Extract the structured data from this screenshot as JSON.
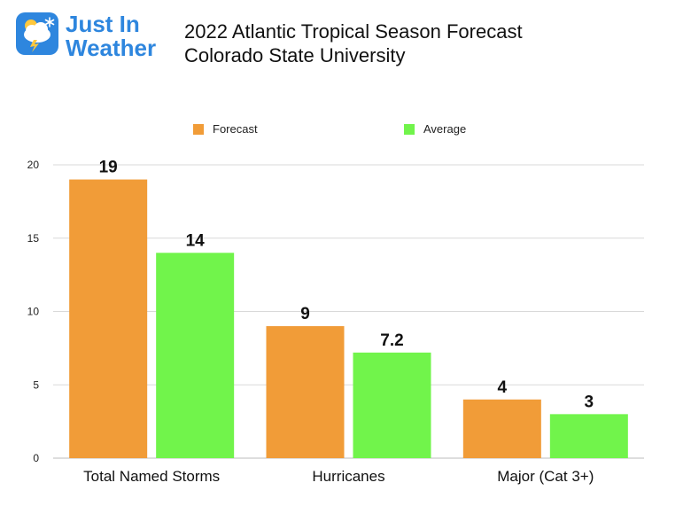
{
  "logo": {
    "line1": "Just In",
    "line2": "Weather"
  },
  "title": "2022 Atlantic Tropical Season Forecast",
  "subtitle": "Colorado State University",
  "colors": {
    "forecast": "#F19C38",
    "average": "#71F44B",
    "brand": "#2E86DE",
    "grid": "#D9D9D9"
  },
  "chart_data": {
    "type": "bar",
    "categories": [
      "Total Named Storms",
      "Hurricanes",
      "Major (Cat 3+)"
    ],
    "series": [
      {
        "name": "Forecast",
        "values": [
          19,
          9,
          4
        ],
        "labels": [
          "19",
          "9",
          "4"
        ]
      },
      {
        "name": "Average",
        "values": [
          14,
          7.2,
          3
        ],
        "labels": [
          "14",
          "7.2",
          "3"
        ]
      }
    ],
    "title": "2022 Atlantic Tropical Season Forecast",
    "subtitle": "Colorado State University",
    "xlabel": "",
    "ylabel": "",
    "ylim": [
      0,
      20
    ],
    "yticks": [
      "0",
      "5",
      "10",
      "15",
      "20"
    ],
    "grid": true,
    "legend": "top"
  }
}
